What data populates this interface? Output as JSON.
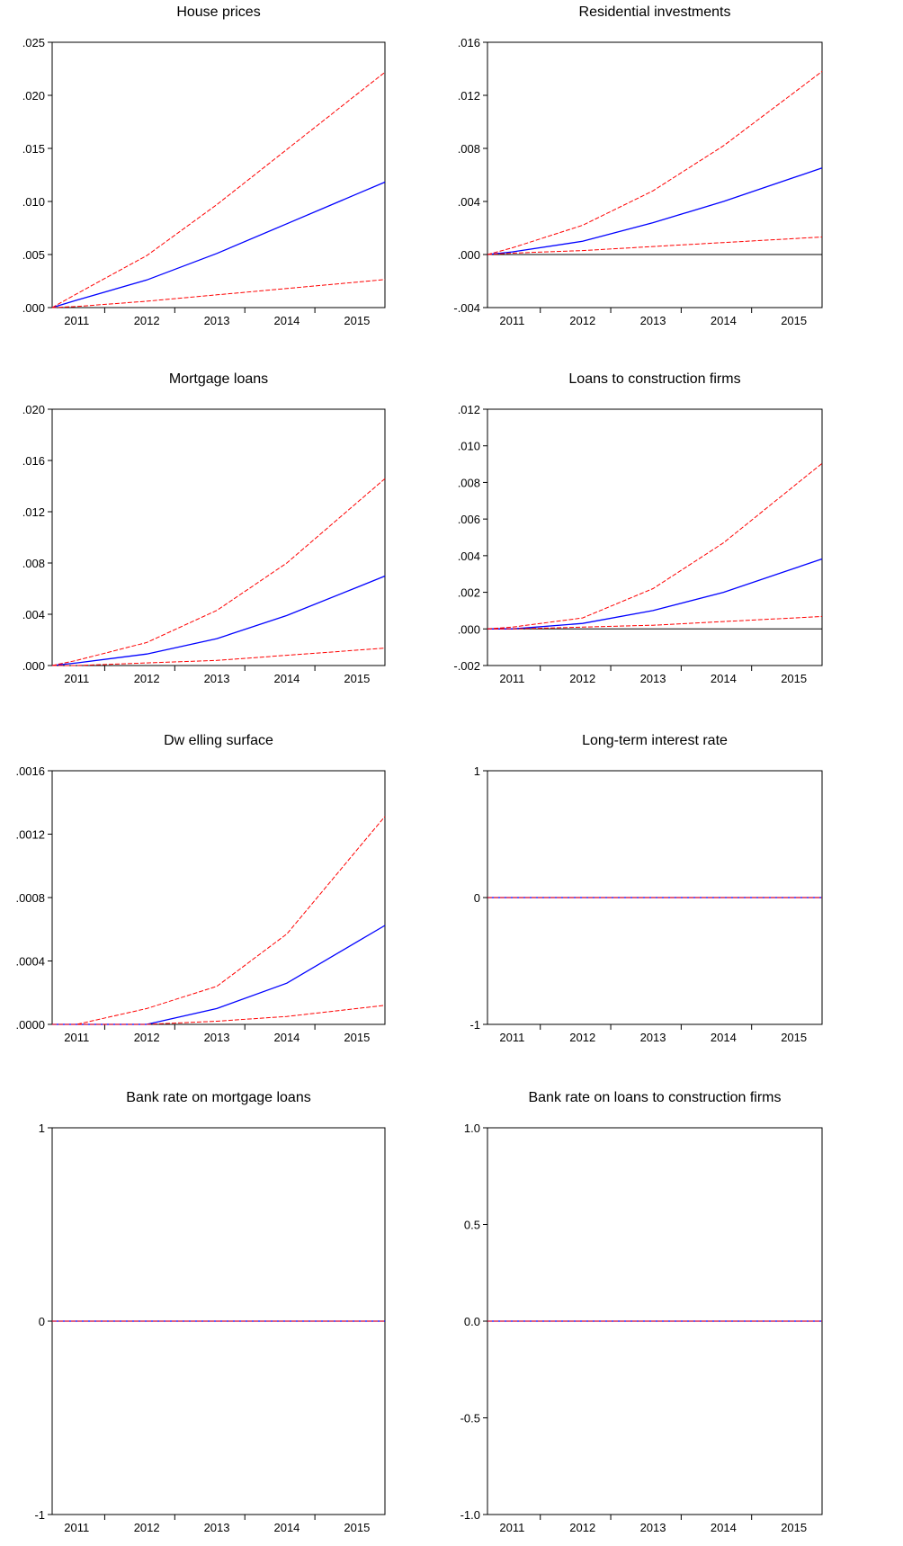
{
  "chart_data": [
    {
      "type": "line",
      "title": "House prices",
      "x": [
        2011,
        2012,
        2013,
        2014,
        2015
      ],
      "ylim": [
        0,
        0.025
      ],
      "yticks": [
        ".000",
        ".005",
        ".010",
        ".015",
        ".020",
        ".025"
      ],
      "xticks": [
        "2011",
        "2012",
        "2013",
        "2014",
        "2015"
      ],
      "zero_line": false,
      "series": [
        {
          "role": "response",
          "color": "#0000ff",
          "dash": false,
          "values": [
            0.0007,
            0.0026,
            0.0051,
            0.0079,
            0.0107
          ]
        },
        {
          "role": "upper",
          "color": "#ff0000",
          "dash": true,
          "values": [
            0.0013,
            0.0049,
            0.0097,
            0.0149,
            0.0201
          ]
        },
        {
          "role": "lower",
          "color": "#ff0000",
          "dash": true,
          "values": [
            0.0001,
            0.0006,
            0.0012,
            0.0018,
            0.0024
          ]
        }
      ]
    },
    {
      "type": "line",
      "title": "Residential investments",
      "x": [
        2011,
        2012,
        2013,
        2014,
        2015
      ],
      "ylim": [
        -0.004,
        0.016
      ],
      "yticks": [
        "-.004",
        ".000",
        ".004",
        ".008",
        ".012",
        ".016"
      ],
      "xticks": [
        "2011",
        "2012",
        "2013",
        "2014",
        "2015"
      ],
      "zero_line": true,
      "series": [
        {
          "role": "response",
          "color": "#0000ff",
          "dash": false,
          "values": [
            0.0002,
            0.001,
            0.0024,
            0.004,
            0.0058
          ]
        },
        {
          "role": "upper",
          "color": "#ff0000",
          "dash": true,
          "values": [
            0.0005,
            0.0022,
            0.0048,
            0.0082,
            0.0122
          ]
        },
        {
          "role": "lower",
          "color": "#ff0000",
          "dash": true,
          "values": [
            0.0001,
            0.0003,
            0.0006,
            0.0009,
            0.0012
          ]
        }
      ]
    },
    {
      "type": "line",
      "title": "Mortgage loans",
      "x": [
        2011,
        2012,
        2013,
        2014,
        2015
      ],
      "ylim": [
        0,
        0.02
      ],
      "yticks": [
        ".000",
        ".004",
        ".008",
        ".012",
        ".016",
        ".020"
      ],
      "xticks": [
        "2011",
        "2012",
        "2013",
        "2014",
        "2015"
      ],
      "zero_line": false,
      "series": [
        {
          "role": "response",
          "color": "#0000ff",
          "dash": false,
          "values": [
            0.0002,
            0.0009,
            0.0021,
            0.0039,
            0.0061
          ]
        },
        {
          "role": "upper",
          "color": "#ff0000",
          "dash": true,
          "values": [
            0.0004,
            0.0018,
            0.0043,
            0.008,
            0.0127
          ]
        },
        {
          "role": "lower",
          "color": "#ff0000",
          "dash": true,
          "values": [
            0.0,
            0.0002,
            0.0004,
            0.0008,
            0.0012
          ]
        }
      ]
    },
    {
      "type": "line",
      "title": "Loans to construction firms",
      "x": [
        2011,
        2012,
        2013,
        2014,
        2015
      ],
      "ylim": [
        -0.002,
        0.012
      ],
      "yticks": [
        "-.002",
        ".000",
        ".002",
        ".004",
        ".006",
        ".008",
        ".010",
        ".012"
      ],
      "xticks": [
        "2011",
        "2012",
        "2013",
        "2014",
        "2015"
      ],
      "zero_line": true,
      "series": [
        {
          "role": "response",
          "color": "#0000ff",
          "dash": false,
          "values": [
            0.0,
            0.0003,
            0.001,
            0.002,
            0.0033
          ]
        },
        {
          "role": "upper",
          "color": "#ff0000",
          "dash": true,
          "values": [
            0.0001,
            0.0006,
            0.0022,
            0.0047,
            0.0078
          ]
        },
        {
          "role": "lower",
          "color": "#ff0000",
          "dash": true,
          "values": [
            0.0,
            0.0001,
            0.0002,
            0.0004,
            0.0006
          ]
        }
      ]
    },
    {
      "type": "line",
      "title": "Dw elling surface",
      "x": [
        2011,
        2012,
        2013,
        2014,
        2015
      ],
      "ylim": [
        0,
        0.0016
      ],
      "yticks": [
        ".0000",
        ".0004",
        ".0008",
        ".0012",
        ".0016"
      ],
      "xticks": [
        "2011",
        "2012",
        "2013",
        "2014",
        "2015"
      ],
      "zero_line": false,
      "series": [
        {
          "role": "response",
          "color": "#0000ff",
          "dash": false,
          "values": [
            0.0,
            0.0,
            0.0001,
            0.00026,
            0.00052
          ]
        },
        {
          "role": "upper",
          "color": "#ff0000",
          "dash": true,
          "values": [
            0.0,
            0.0001,
            0.00024,
            0.00057,
            0.0011
          ]
        },
        {
          "role": "lower",
          "color": "#ff0000",
          "dash": true,
          "values": [
            0.0,
            0.0,
            2e-05,
            5e-05,
            0.0001
          ]
        }
      ]
    },
    {
      "type": "line",
      "title": "Long-term interest rate",
      "x": [
        2011,
        2012,
        2013,
        2014,
        2015
      ],
      "ylim": [
        -1,
        1
      ],
      "yticks": [
        "-1",
        "0",
        "1"
      ],
      "xticks": [
        "2011",
        "2012",
        "2013",
        "2014",
        "2015"
      ],
      "zero_line": false,
      "series": [
        {
          "role": "response",
          "color": "#0000ff",
          "dash": false,
          "values": [
            0,
            0,
            0,
            0,
            0
          ]
        },
        {
          "role": "upper",
          "color": "#ff0000",
          "dash": true,
          "values": [
            0,
            0,
            0,
            0,
            0
          ]
        },
        {
          "role": "lower",
          "color": "#ff0000",
          "dash": true,
          "values": [
            0,
            0,
            0,
            0,
            0
          ]
        }
      ]
    },
    {
      "type": "line",
      "title": "Bank rate on mortgage loans",
      "x": [
        2011,
        2012,
        2013,
        2014,
        2015
      ],
      "ylim": [
        -1,
        1
      ],
      "yticks": [
        "-1",
        "0",
        "1"
      ],
      "xticks": [
        "2011",
        "2012",
        "2013",
        "2014",
        "2015"
      ],
      "zero_line": false,
      "series": [
        {
          "role": "response",
          "color": "#0000ff",
          "dash": false,
          "values": [
            0,
            0,
            0,
            0,
            0
          ]
        },
        {
          "role": "upper",
          "color": "#ff0000",
          "dash": true,
          "values": [
            0,
            0,
            0,
            0,
            0
          ]
        },
        {
          "role": "lower",
          "color": "#ff0000",
          "dash": true,
          "values": [
            0,
            0,
            0,
            0,
            0
          ]
        }
      ]
    },
    {
      "type": "line",
      "title": "Bank rate on loans to construction firms",
      "x": [
        2011,
        2012,
        2013,
        2014,
        2015
      ],
      "ylim": [
        -1,
        1
      ],
      "yticks": [
        "-1.0",
        "-0.5",
        "0.0",
        "0.5",
        "1.0"
      ],
      "xticks": [
        "2011",
        "2012",
        "2013",
        "2014",
        "2015"
      ],
      "zero_line": false,
      "series": [
        {
          "role": "response",
          "color": "#0000ff",
          "dash": false,
          "values": [
            0,
            0,
            0,
            0,
            0
          ]
        },
        {
          "role": "upper",
          "color": "#ff0000",
          "dash": true,
          "values": [
            0,
            0,
            0,
            0,
            0
          ]
        },
        {
          "role": "lower",
          "color": "#ff0000",
          "dash": true,
          "values": [
            0,
            0,
            0,
            0,
            0
          ]
        }
      ]
    }
  ]
}
